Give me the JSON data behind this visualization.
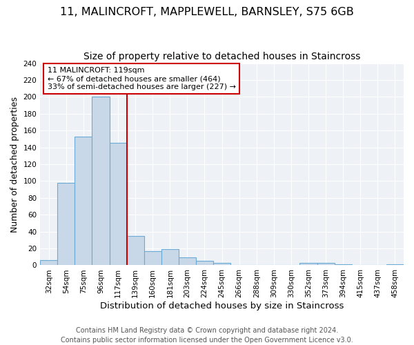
{
  "title": "11, MALINCROFT, MAPPLEWELL, BARNSLEY, S75 6GB",
  "subtitle": "Size of property relative to detached houses in Staincross",
  "xlabel": "Distribution of detached houses by size in Staincross",
  "ylabel": "Number of detached properties",
  "bar_labels": [
    "32sqm",
    "54sqm",
    "75sqm",
    "96sqm",
    "117sqm",
    "139sqm",
    "160sqm",
    "181sqm",
    "203sqm",
    "224sqm",
    "245sqm",
    "266sqm",
    "288sqm",
    "309sqm",
    "330sqm",
    "352sqm",
    "373sqm",
    "394sqm",
    "415sqm",
    "437sqm",
    "458sqm"
  ],
  "bar_values": [
    6,
    98,
    153,
    200,
    145,
    35,
    17,
    19,
    9,
    5,
    3,
    0,
    0,
    0,
    0,
    3,
    3,
    1,
    0,
    0,
    1
  ],
  "bar_color": "#c8d8e8",
  "bar_edge_color": "#6aaad4",
  "vline_color": "#cc0000",
  "vline_x_index": 4,
  "ylim": [
    0,
    240
  ],
  "yticks": [
    0,
    20,
    40,
    60,
    80,
    100,
    120,
    140,
    160,
    180,
    200,
    220,
    240
  ],
  "annotation_title": "11 MALINCROFT: 119sqm",
  "annotation_line1": "← 67% of detached houses are smaller (464)",
  "annotation_line2": "33% of semi-detached houses are larger (227) →",
  "annotation_box_color": "#cc0000",
  "footer_line1": "Contains HM Land Registry data © Crown copyright and database right 2024.",
  "footer_line2": "Contains public sector information licensed under the Open Government Licence v3.0.",
  "title_fontsize": 11.5,
  "subtitle_fontsize": 10,
  "xlabel_fontsize": 9.5,
  "ylabel_fontsize": 9,
  "tick_fontsize": 7.5,
  "ann_fontsize": 8,
  "footer_fontsize": 7,
  "bg_color": "#ffffff",
  "plot_bg_color": "#eef2f7",
  "grid_color": "#ffffff"
}
